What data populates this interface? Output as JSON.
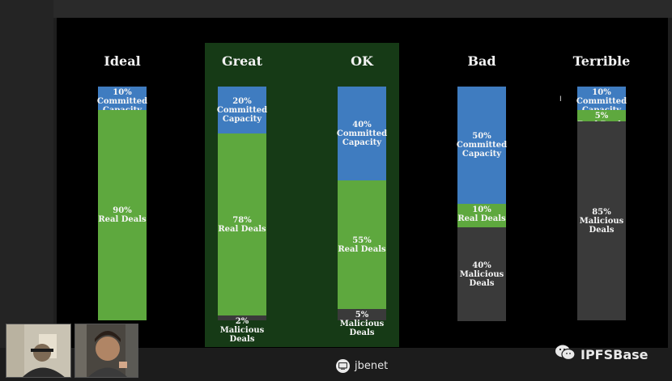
{
  "chart_data": [
    {
      "type": "bar",
      "title": "Ideal",
      "segments": [
        {
          "label_pct": "10%",
          "label_text": [
            "Committed",
            "Capacity"
          ],
          "value": 10,
          "color": "#3f7cc0"
        },
        {
          "label_pct": "90%",
          "label_text": [
            "Real Deals"
          ],
          "value": 90,
          "color": "#5ea83e"
        }
      ]
    },
    {
      "type": "bar",
      "title": "Great",
      "segments": [
        {
          "label_pct": "20%",
          "label_text": [
            "Committed",
            "Capacity"
          ],
          "value": 20,
          "color": "#3f7cc0"
        },
        {
          "label_pct": "78%",
          "label_text": [
            "Real Deals"
          ],
          "value": 78,
          "color": "#5ea83e"
        },
        {
          "label_pct": "2%",
          "label_text": [
            "Malicious",
            "Deals"
          ],
          "value": 2,
          "color": "#3a3a3a"
        }
      ]
    },
    {
      "type": "bar",
      "title": "OK",
      "segments": [
        {
          "label_pct": "40%",
          "label_text": [
            "Committed",
            "Capacity"
          ],
          "value": 40,
          "color": "#3f7cc0"
        },
        {
          "label_pct": "55%",
          "label_text": [
            "Real Deals"
          ],
          "value": 55,
          "color": "#5ea83e"
        },
        {
          "label_pct": "5%",
          "label_text": [
            "Malicious",
            "Deals"
          ],
          "value": 5,
          "color": "#3a3a3a"
        }
      ]
    },
    {
      "type": "bar",
      "title": "Bad",
      "segments": [
        {
          "label_pct": "50%",
          "label_text": [
            "Committed",
            "Capacity"
          ],
          "value": 50,
          "color": "#3f7cc0"
        },
        {
          "label_pct": "10%",
          "label_text": [
            "Real Deals"
          ],
          "value": 10,
          "color": "#5ea83e"
        },
        {
          "label_pct": "40%",
          "label_text": [
            "Malicious",
            "Deals"
          ],
          "value": 40,
          "color": "#3a3a3a"
        }
      ]
    },
    {
      "type": "bar",
      "title": "Terrible",
      "segments": [
        {
          "label_pct": "10%",
          "label_text": [
            "Committed",
            "Capacity"
          ],
          "value": 10,
          "color": "#3f7cc0"
        },
        {
          "label_pct": "5%",
          "label_text": [
            "Real Deals"
          ],
          "value": 5,
          "color": "#5ea83e"
        },
        {
          "label_pct": "85%",
          "label_text": [
            "Malicious",
            "Deals"
          ],
          "value": 85,
          "color": "#3a3a3a"
        }
      ]
    }
  ],
  "meeting": {
    "presenter_name": "jbenet",
    "presenter_icon": "screen-share-icon",
    "watermark_text": "IPFSBase",
    "watermark_icon": "wechat-icon"
  }
}
